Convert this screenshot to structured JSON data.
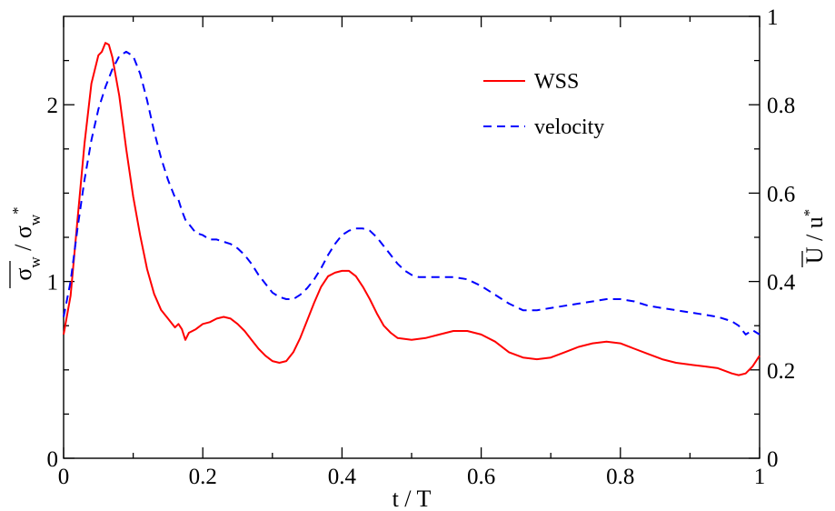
{
  "chart_data": {
    "type": "line",
    "xlabel": "t / T",
    "ylabel_left": "σw / σw*",
    "ylabel_right": "U / u*",
    "xlim": [
      0,
      1
    ],
    "ylim_left": [
      0,
      2.5
    ],
    "ylim_right": [
      0,
      1
    ],
    "x_ticks": [
      "0",
      "0.2",
      "0.4",
      "0.6",
      "0.8",
      "1"
    ],
    "y_left_ticks": [
      "0",
      "1",
      "2"
    ],
    "y_right_ticks": [
      "0",
      "0.2",
      "0.4",
      "0.6",
      "0.8",
      "1"
    ],
    "grid": false,
    "legend_position": "top-right",
    "series": [
      {
        "name": "WSS",
        "axis": "left",
        "color": "#ff0000",
        "style": "solid",
        "x": [
          0.0,
          0.01,
          0.02,
          0.03,
          0.04,
          0.05,
          0.055,
          0.06,
          0.065,
          0.07,
          0.08,
          0.09,
          0.1,
          0.11,
          0.12,
          0.13,
          0.14,
          0.15,
          0.16,
          0.165,
          0.17,
          0.175,
          0.18,
          0.19,
          0.2,
          0.21,
          0.22,
          0.23,
          0.24,
          0.25,
          0.26,
          0.27,
          0.28,
          0.29,
          0.3,
          0.31,
          0.32,
          0.33,
          0.34,
          0.35,
          0.36,
          0.37,
          0.38,
          0.39,
          0.4,
          0.41,
          0.42,
          0.43,
          0.44,
          0.45,
          0.46,
          0.47,
          0.48,
          0.5,
          0.52,
          0.54,
          0.56,
          0.58,
          0.6,
          0.62,
          0.64,
          0.66,
          0.68,
          0.7,
          0.72,
          0.74,
          0.76,
          0.78,
          0.8,
          0.82,
          0.84,
          0.86,
          0.88,
          0.9,
          0.92,
          0.94,
          0.96,
          0.97,
          0.98,
          0.99,
          1.0
        ],
        "values": [
          0.7,
          0.92,
          1.35,
          1.78,
          2.12,
          2.28,
          2.3,
          2.35,
          2.34,
          2.27,
          2.05,
          1.75,
          1.48,
          1.26,
          1.07,
          0.93,
          0.84,
          0.79,
          0.74,
          0.76,
          0.73,
          0.67,
          0.71,
          0.73,
          0.76,
          0.77,
          0.79,
          0.8,
          0.79,
          0.76,
          0.72,
          0.67,
          0.62,
          0.58,
          0.55,
          0.54,
          0.55,
          0.6,
          0.68,
          0.78,
          0.88,
          0.97,
          1.03,
          1.05,
          1.06,
          1.06,
          1.03,
          0.97,
          0.9,
          0.82,
          0.75,
          0.71,
          0.68,
          0.67,
          0.68,
          0.7,
          0.72,
          0.72,
          0.7,
          0.66,
          0.6,
          0.57,
          0.56,
          0.57,
          0.6,
          0.63,
          0.65,
          0.66,
          0.65,
          0.62,
          0.59,
          0.56,
          0.54,
          0.53,
          0.52,
          0.51,
          0.48,
          0.47,
          0.48,
          0.52,
          0.58
        ]
      },
      {
        "name": "velocity",
        "axis": "right",
        "color": "#0000ff",
        "style": "dashed",
        "x": [
          0.0,
          0.01,
          0.02,
          0.03,
          0.04,
          0.05,
          0.06,
          0.07,
          0.08,
          0.09,
          0.1,
          0.11,
          0.12,
          0.13,
          0.14,
          0.15,
          0.16,
          0.165,
          0.17,
          0.175,
          0.18,
          0.19,
          0.2,
          0.21,
          0.22,
          0.23,
          0.24,
          0.25,
          0.26,
          0.27,
          0.28,
          0.29,
          0.3,
          0.31,
          0.32,
          0.33,
          0.34,
          0.35,
          0.36,
          0.37,
          0.38,
          0.39,
          0.4,
          0.41,
          0.42,
          0.43,
          0.44,
          0.45,
          0.46,
          0.47,
          0.48,
          0.49,
          0.5,
          0.51,
          0.52,
          0.54,
          0.56,
          0.58,
          0.6,
          0.62,
          0.64,
          0.66,
          0.68,
          0.7,
          0.72,
          0.74,
          0.76,
          0.78,
          0.8,
          0.82,
          0.84,
          0.86,
          0.88,
          0.9,
          0.92,
          0.94,
          0.96,
          0.97,
          0.98,
          0.99,
          1.0
        ],
        "values": [
          0.32,
          0.4,
          0.52,
          0.63,
          0.72,
          0.79,
          0.84,
          0.88,
          0.91,
          0.92,
          0.91,
          0.87,
          0.81,
          0.74,
          0.68,
          0.63,
          0.59,
          0.585,
          0.56,
          0.54,
          0.53,
          0.51,
          0.505,
          0.495,
          0.495,
          0.49,
          0.485,
          0.475,
          0.46,
          0.44,
          0.415,
          0.395,
          0.375,
          0.365,
          0.36,
          0.36,
          0.37,
          0.385,
          0.405,
          0.43,
          0.46,
          0.485,
          0.505,
          0.515,
          0.52,
          0.52,
          0.515,
          0.5,
          0.48,
          0.46,
          0.44,
          0.425,
          0.415,
          0.41,
          0.41,
          0.41,
          0.41,
          0.405,
          0.39,
          0.37,
          0.35,
          0.335,
          0.335,
          0.34,
          0.345,
          0.35,
          0.355,
          0.36,
          0.36,
          0.355,
          0.345,
          0.34,
          0.335,
          0.33,
          0.325,
          0.32,
          0.31,
          0.3,
          0.28,
          0.29,
          0.28
        ]
      }
    ]
  }
}
